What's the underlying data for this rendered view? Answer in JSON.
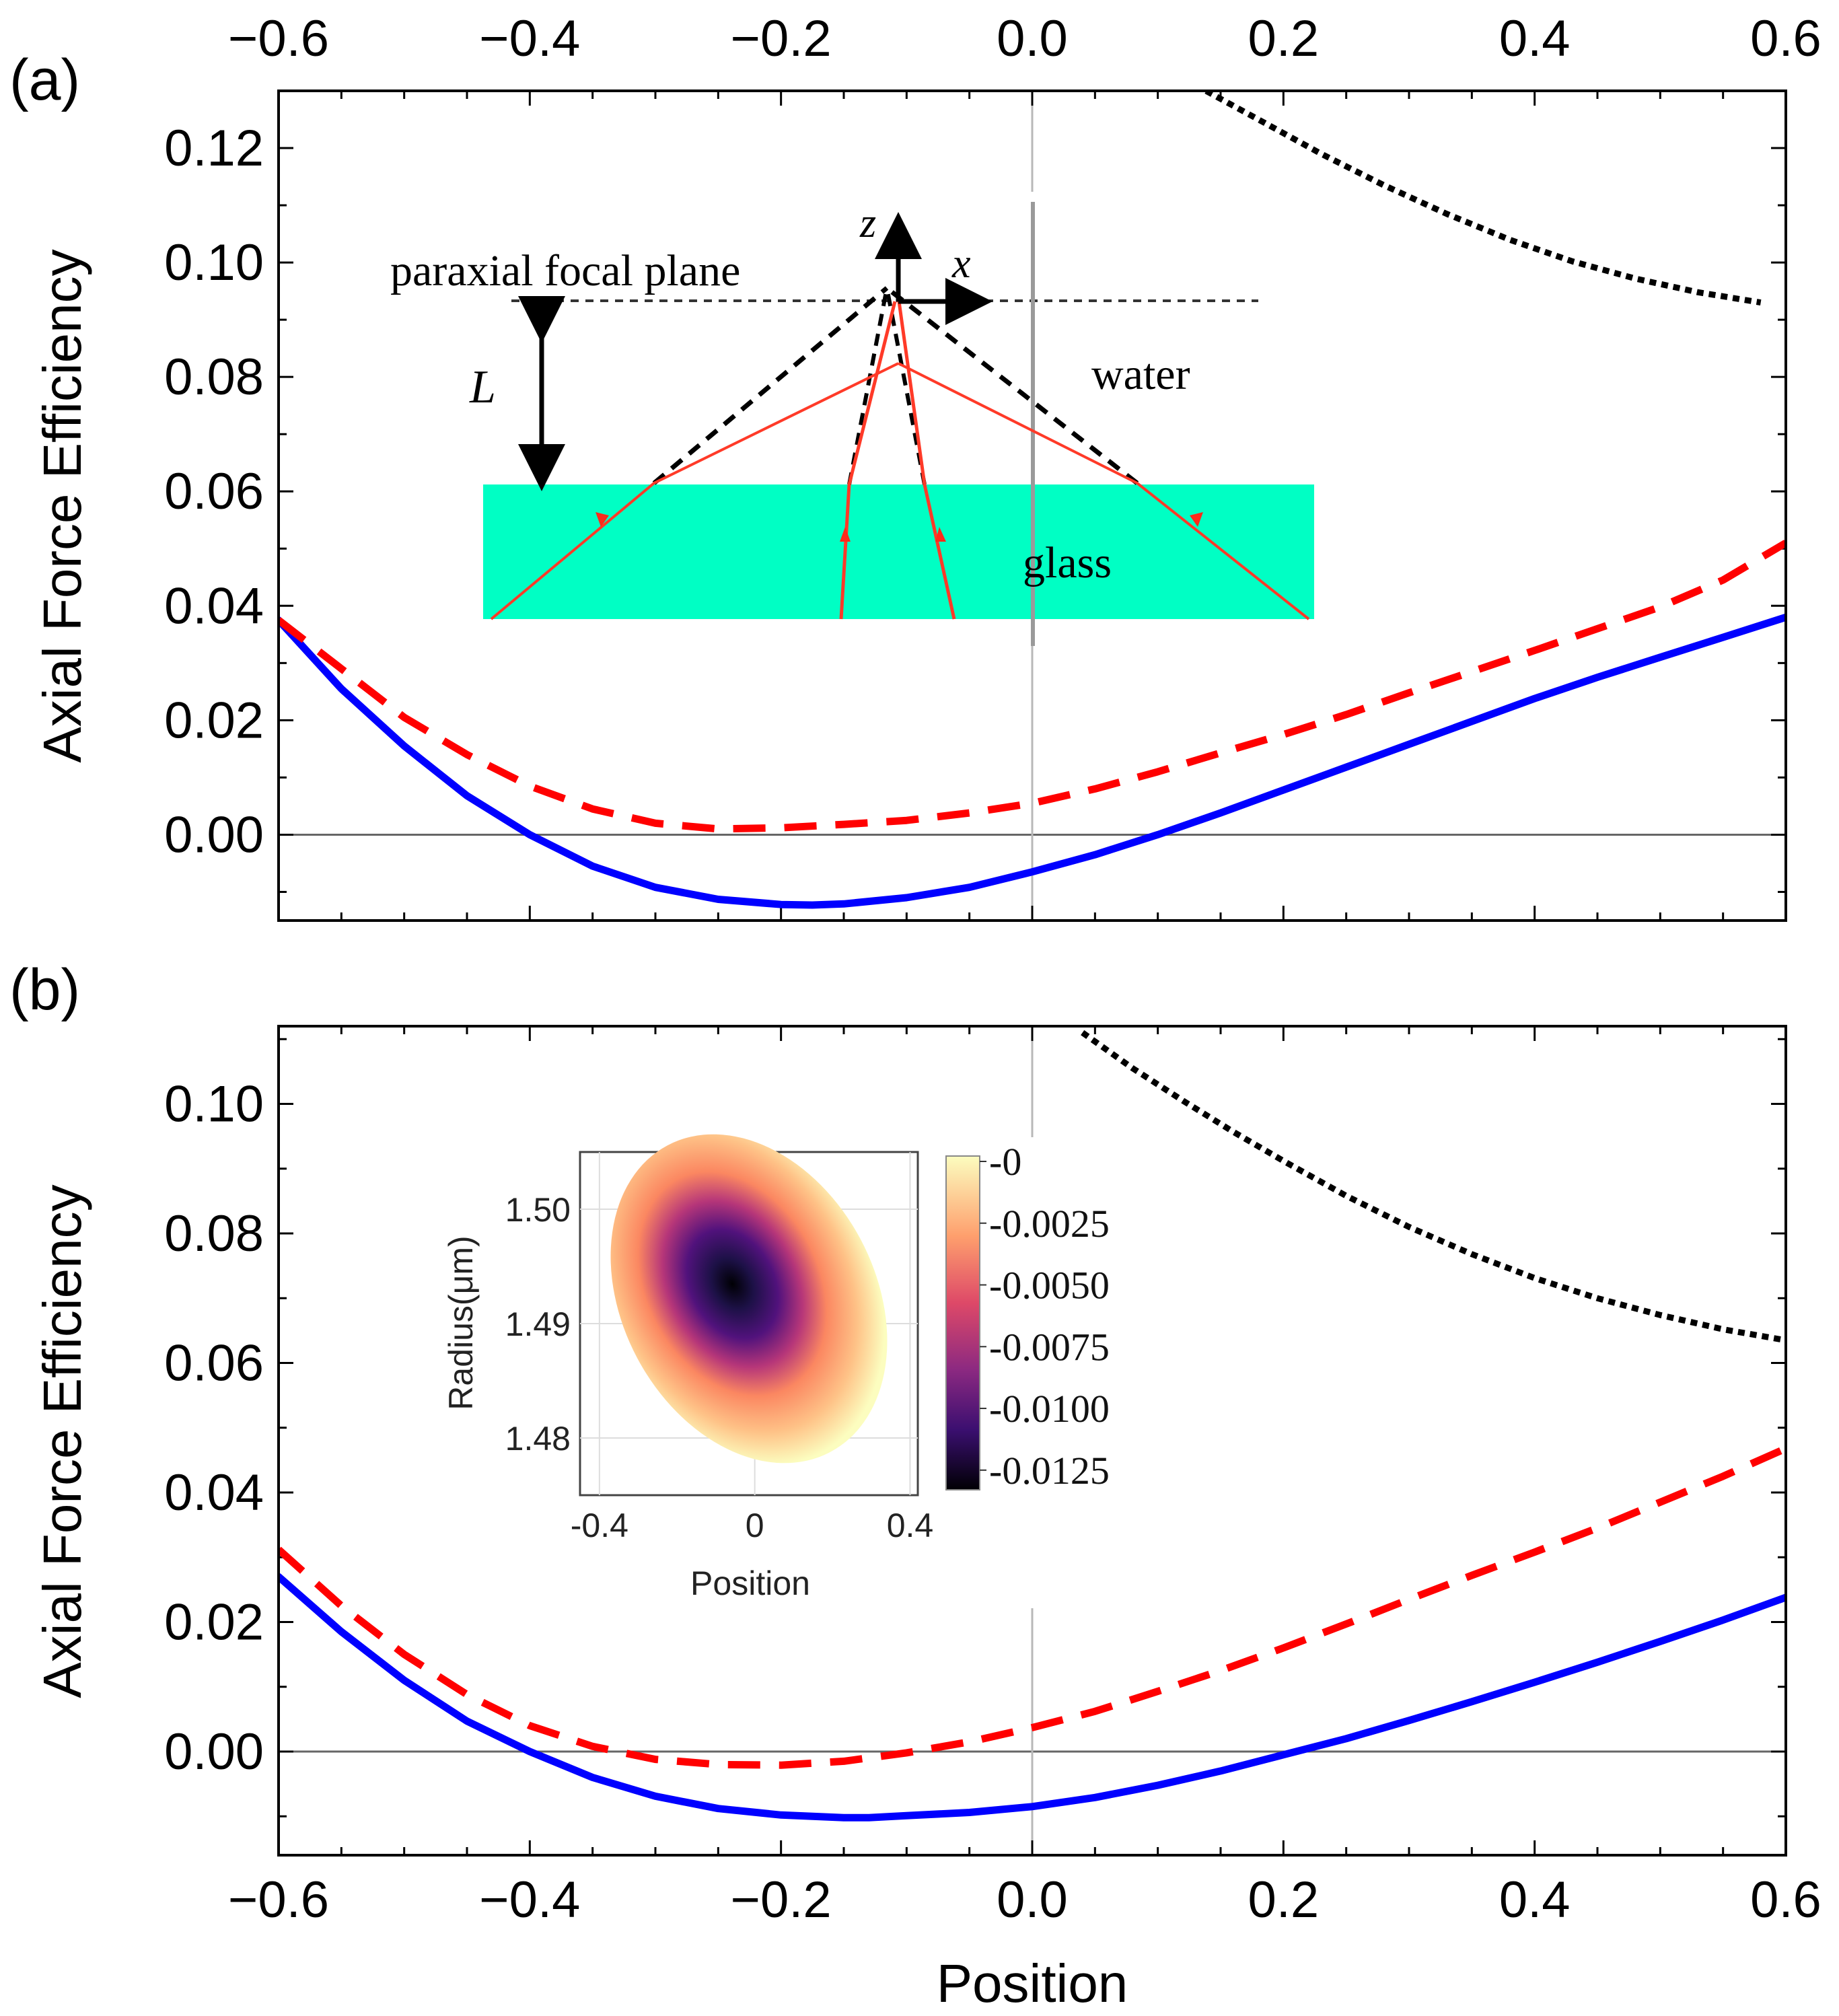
{
  "chart_data": [
    {
      "panel_label": "(a)",
      "type": "line",
      "xlabel": "",
      "ylabel": "Axial Force  Efficiency",
      "xlim": [
        -0.6,
        0.6
      ],
      "ylim": [
        -0.015,
        0.13
      ],
      "xticks": [
        -0.6,
        -0.4,
        -0.2,
        0.0,
        0.2,
        0.4,
        0.6
      ],
      "xtick_labels": [
        "−0.6",
        "−0.4",
        "−0.2",
        "0.0",
        "0.2",
        "0.4",
        "0.6"
      ],
      "yticks": [
        0.0,
        0.02,
        0.04,
        0.06,
        0.08,
        0.1,
        0.12
      ],
      "ytick_labels": [
        "0.00",
        "0.02",
        "0.04",
        "0.06",
        "0.08",
        "0.10",
        "0.12"
      ],
      "x_axis_labels_position": "top",
      "series": [
        {
          "style": "solid",
          "color": "#0000ff",
          "x": [
            -0.6,
            -0.55,
            -0.5,
            -0.45,
            -0.4,
            -0.35,
            -0.3,
            -0.25,
            -0.2,
            -0.175,
            -0.15,
            -0.1,
            -0.05,
            0.0,
            0.05,
            0.1,
            0.15,
            0.2,
            0.25,
            0.3,
            0.35,
            0.4,
            0.45,
            0.5,
            0.55,
            0.6
          ],
          "y": [
            0.0375,
            0.0255,
            0.0155,
            0.0068,
            0.0,
            -0.0055,
            -0.0092,
            -0.0113,
            -0.0122,
            -0.0123,
            -0.0121,
            -0.011,
            -0.0092,
            -0.0065,
            -0.0035,
            0.0,
            0.0038,
            0.0078,
            0.0118,
            0.0158,
            0.0198,
            0.0238,
            0.0275,
            0.031,
            0.0345,
            0.038
          ]
        },
        {
          "style": "dashed",
          "color": "#ff0000",
          "x": [
            -0.6,
            -0.55,
            -0.5,
            -0.45,
            -0.4,
            -0.35,
            -0.3,
            -0.25,
            -0.2,
            -0.15,
            -0.1,
            -0.05,
            0.0,
            0.05,
            0.1,
            0.15,
            0.2,
            0.25,
            0.3,
            0.35,
            0.4,
            0.45,
            0.5,
            0.55,
            0.6
          ],
          "y": [
            0.0375,
            0.029,
            0.0205,
            0.014,
            0.0085,
            0.0045,
            0.002,
            0.001,
            0.0012,
            0.0018,
            0.0025,
            0.0038,
            0.0055,
            0.008,
            0.011,
            0.0143,
            0.0175,
            0.021,
            0.0248,
            0.0285,
            0.0322,
            0.036,
            0.0398,
            0.0445,
            0.051
          ]
        },
        {
          "style": "dotted",
          "color": "#000000",
          "x": [
            0.13,
            0.18,
            0.23,
            0.28,
            0.33,
            0.38,
            0.43,
            0.48,
            0.53,
            0.58
          ],
          "y": [
            0.131,
            0.125,
            0.119,
            0.1135,
            0.1085,
            0.104,
            0.1002,
            0.0972,
            0.0948,
            0.093
          ]
        }
      ],
      "inset": {
        "labels": {
          "z": "z",
          "x": "x",
          "plane": "paraxial focal plane",
          "water": "water",
          "glass": "glass",
          "length": "L"
        },
        "colors": {
          "glass": "#00ffc4",
          "rays": "#ff3a28"
        }
      }
    },
    {
      "panel_label": "(b)",
      "type": "line",
      "xlabel": "Position",
      "ylabel": "Axial Force Efficiency",
      "xlim": [
        -0.6,
        0.6
      ],
      "ylim": [
        -0.016,
        0.112
      ],
      "xticks": [
        -0.6,
        -0.4,
        -0.2,
        0.0,
        0.2,
        0.4,
        0.6
      ],
      "xtick_labels": [
        "−0.6",
        "−0.4",
        "−0.2",
        "0.0",
        "0.2",
        "0.4",
        "0.6"
      ],
      "yticks": [
        0.0,
        0.02,
        0.04,
        0.06,
        0.08,
        0.1
      ],
      "ytick_labels": [
        "0.00",
        "0.02",
        "0.04",
        "0.06",
        "0.08",
        "0.10"
      ],
      "series": [
        {
          "style": "solid",
          "color": "#0000ff",
          "x": [
            -0.6,
            -0.55,
            -0.5,
            -0.45,
            -0.4,
            -0.35,
            -0.3,
            -0.25,
            -0.2,
            -0.15,
            -0.13,
            -0.1,
            -0.05,
            0.0,
            0.05,
            0.1,
            0.15,
            0.2,
            0.25,
            0.3,
            0.35,
            0.4,
            0.45,
            0.5,
            0.55,
            0.6
          ],
          "y": [
            0.027,
            0.0185,
            0.011,
            0.0047,
            0.0,
            -0.004,
            -0.0069,
            -0.0088,
            -0.0098,
            -0.0102,
            -0.0102,
            -0.0099,
            -0.0094,
            -0.0085,
            -0.0071,
            -0.0052,
            -0.003,
            -0.0005,
            0.002,
            0.0048,
            0.0077,
            0.0107,
            0.0138,
            0.017,
            0.0203,
            0.0238
          ]
        },
        {
          "style": "dashed",
          "color": "#ff0000",
          "x": [
            -0.6,
            -0.55,
            -0.5,
            -0.45,
            -0.4,
            -0.35,
            -0.3,
            -0.25,
            -0.2,
            -0.15,
            -0.1,
            -0.05,
            0.0,
            0.05,
            0.1,
            0.15,
            0.2,
            0.25,
            0.3,
            0.35,
            0.4,
            0.45,
            0.5,
            0.55,
            0.6
          ],
          "y": [
            0.0312,
            0.0225,
            0.015,
            0.0088,
            0.004,
            0.0008,
            -0.0012,
            -0.002,
            -0.0021,
            -0.0015,
            -0.0002,
            0.0015,
            0.0037,
            0.0062,
            0.0093,
            0.0125,
            0.016,
            0.0197,
            0.0235,
            0.0272,
            0.0308,
            0.0345,
            0.0385,
            0.0425,
            0.0468
          ]
        },
        {
          "style": "dotted",
          "color": "#000000",
          "x": [
            0.04,
            0.08,
            0.12,
            0.16,
            0.2,
            0.25,
            0.3,
            0.35,
            0.4,
            0.45,
            0.5,
            0.55,
            0.6
          ],
          "y": [
            0.111,
            0.1055,
            0.1005,
            0.0957,
            0.0912,
            0.0858,
            0.081,
            0.0768,
            0.0731,
            0.07,
            0.0674,
            0.0652,
            0.0635
          ]
        }
      ],
      "inset": {
        "type": "heatmap",
        "xlabel": "Position",
        "ylabel": "Radius(μm)",
        "xlim": [
          -0.45,
          0.42
        ],
        "ylim": [
          1.475,
          1.505
        ],
        "xticks": [
          -0.4,
          0,
          0.4
        ],
        "xtick_labels": [
          "-0.4",
          "0",
          "0.4"
        ],
        "yticks": [
          1.48,
          1.49,
          1.5
        ],
        "ytick_labels": [
          "1.48",
          "1.49",
          "1.50"
        ],
        "colorbar_ticks": [
          "-0",
          "-0.0025",
          "-0.0050",
          "-0.0075",
          "-0.0100",
          "-0.0125"
        ],
        "colorbar_range": [
          -0.0135,
          0.0
        ],
        "colorbar_colors": [
          "#000004",
          "#3b0f70",
          "#8c2981",
          "#de4968",
          "#fe9f6d",
          "#fcfdbf"
        ],
        "minimum": {
          "x": -0.07,
          "y": 1.4905,
          "value": -0.0135
        }
      }
    }
  ]
}
